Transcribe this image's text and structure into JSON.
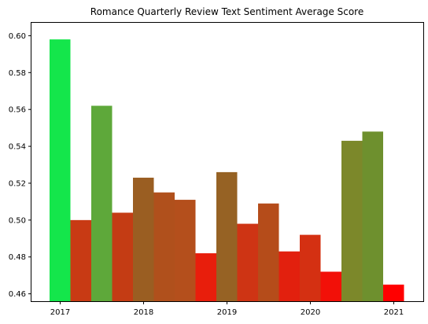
{
  "chart_data": {
    "type": "bar",
    "title": "Romance Quarterly Review Text Sentiment Average Score",
    "xlabel": "",
    "ylabel": "",
    "x_tick_labels": [
      "2017",
      "2018",
      "2019",
      "2020",
      "2021"
    ],
    "ylim": [
      0.456,
      0.607
    ],
    "y_ticks": [
      "0.46",
      "0.48",
      "0.50",
      "0.52",
      "0.54",
      "0.56",
      "0.58",
      "0.60"
    ],
    "grid": false,
    "legend": "none",
    "bars": [
      {
        "quarter": "2017 Q1",
        "value": 0.598,
        "color": "#14e64b"
      },
      {
        "quarter": "2017 Q2",
        "value": 0.5,
        "color": "#c83a14"
      },
      {
        "quarter": "2017 Q3",
        "value": 0.562,
        "color": "#5ea83a"
      },
      {
        "quarter": "2017 Q4",
        "value": 0.504,
        "color": "#c43c14"
      },
      {
        "quarter": "2018 Q1",
        "value": 0.523,
        "color": "#9a5e22"
      },
      {
        "quarter": "2018 Q2",
        "value": 0.515,
        "color": "#b0501c"
      },
      {
        "quarter": "2018 Q3",
        "value": 0.511,
        "color": "#b44f1c"
      },
      {
        "quarter": "2018 Q4",
        "value": 0.482,
        "color": "#e81e0c"
      },
      {
        "quarter": "2019 Q1",
        "value": 0.526,
        "color": "#966224"
      },
      {
        "quarter": "2019 Q2",
        "value": 0.498,
        "color": "#ce3414"
      },
      {
        "quarter": "2019 Q3",
        "value": 0.509,
        "color": "#b54c1a"
      },
      {
        "quarter": "2019 Q4",
        "value": 0.483,
        "color": "#e2200e"
      },
      {
        "quarter": "2020 Q1",
        "value": 0.492,
        "color": "#d43012"
      },
      {
        "quarter": "2020 Q2",
        "value": 0.472,
        "color": "#f21008"
      },
      {
        "quarter": "2020 Q3",
        "value": 0.543,
        "color": "#7c882a"
      },
      {
        "quarter": "2020 Q4",
        "value": 0.548,
        "color": "#6e902e"
      },
      {
        "quarter": "2021 Q1",
        "value": 0.465,
        "color": "#ff0000"
      }
    ]
  }
}
